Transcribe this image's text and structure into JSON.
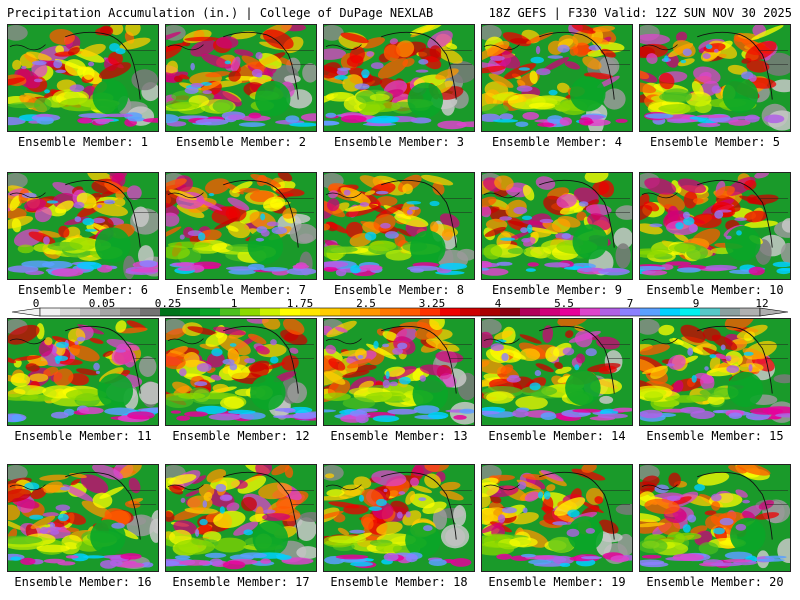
{
  "header": {
    "left": "Precipitation Accumulation (in.) | College of DuPage NEXLAB",
    "right": "18Z GEFS | F330 Valid: 12Z SUN NOV 30 2025"
  },
  "legend": {
    "tick_labels": [
      "0",
      "0.05",
      "0.25",
      "1",
      "1.75",
      "2.5",
      "3.25",
      "4",
      "5.5",
      "7",
      "9",
      "12"
    ],
    "colors": [
      "#f2f2f2",
      "#d9d9d9",
      "#bfbfbf",
      "#a6a6a6",
      "#8c8c8c",
      "#737373",
      "#00731a",
      "#008c1f",
      "#0aa628",
      "#4dbf1f",
      "#8cd900",
      "#ccf200",
      "#ffff00",
      "#ffe600",
      "#ffcc00",
      "#ffb000",
      "#ff9600",
      "#ff7800",
      "#ff5a00",
      "#ff3200",
      "#ee0000",
      "#cc0000",
      "#aa0000",
      "#8c0010",
      "#b0005a",
      "#d0007a",
      "#e6009a",
      "#dd44cc",
      "#b060e6",
      "#8c80ff",
      "#5aa0ff",
      "#00d0ff",
      "#00f0f0",
      "#55c8c8",
      "#8ca0a0",
      "#b0b0b0"
    ]
  },
  "panels": [
    {
      "label": "Ensemble Member: 1"
    },
    {
      "label": "Ensemble Member: 2"
    },
    {
      "label": "Ensemble Member: 3"
    },
    {
      "label": "Ensemble Member: 4"
    },
    {
      "label": "Ensemble Member: 5"
    },
    {
      "label": "Ensemble Member: 6"
    },
    {
      "label": "Ensemble Member: 7"
    },
    {
      "label": "Ensemble Member: 8"
    },
    {
      "label": "Ensemble Member: 9"
    },
    {
      "label": "Ensemble Member: 10"
    },
    {
      "label": "Ensemble Member: 11"
    },
    {
      "label": "Ensemble Member: 12"
    },
    {
      "label": "Ensemble Member: 13"
    },
    {
      "label": "Ensemble Member: 14"
    },
    {
      "label": "Ensemble Member: 15"
    },
    {
      "label": "Ensemble Member: 16"
    },
    {
      "label": "Ensemble Member: 17"
    },
    {
      "label": "Ensemble Member: 18"
    },
    {
      "label": "Ensemble Member: 19"
    },
    {
      "label": "Ensemble Member: 20"
    }
  ]
}
